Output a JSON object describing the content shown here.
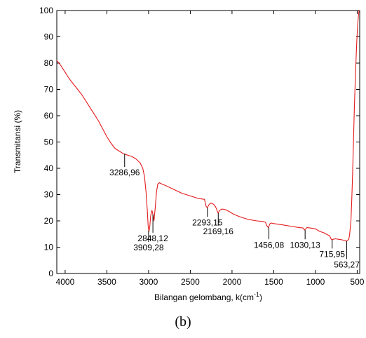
{
  "caption": "(b)",
  "chart_data": {
    "type": "line",
    "title": "",
    "xlabel_main": "Bilangan gelombang, k(cm",
    "xlabel_sup": "-1",
    "xlabel_end": ")",
    "ylabel": "Transmitansi (%)",
    "xlim": [
      4100,
      470
    ],
    "ylim": [
      0,
      100
    ],
    "x_reversed": true,
    "grid": false,
    "x_ticks": [
      4000,
      3500,
      3000,
      2500,
      2000,
      1500,
      1000,
      500
    ],
    "y_ticks": [
      0,
      10,
      20,
      30,
      40,
      50,
      60,
      70,
      80,
      90,
      100
    ],
    "line_color": "#e41a1c",
    "series": [
      {
        "x": [
          4100,
          4050,
          4000,
          3950,
          3900,
          3850,
          3800,
          3750,
          3700,
          3650,
          3600,
          3550,
          3500,
          3450,
          3400,
          3350,
          3300,
          3250,
          3200,
          3150,
          3100,
          3070,
          3050,
          3030,
          3015,
          3005,
          2995,
          2985,
          2975,
          2960,
          2948,
          2935,
          2920,
          2905,
          2890,
          2870,
          2840,
          2800,
          2700,
          2600,
          2500,
          2400,
          2330,
          2310,
          2295,
          2280,
          2265,
          2250,
          2220,
          2200,
          2185,
          2175,
          2165,
          2150,
          2120,
          2080,
          2030,
          1980,
          1900,
          1800,
          1700,
          1630,
          1600,
          1580,
          1565,
          1555,
          1545,
          1530,
          1500,
          1400,
          1300,
          1200,
          1150,
          1130,
          1115,
          1100,
          1000,
          950,
          900,
          860,
          830,
          810,
          800,
          790,
          760,
          720,
          680,
          650,
          630,
          600,
          590,
          575,
          565,
          555,
          545,
          535,
          525,
          515,
          505,
          495,
          485,
          478,
          472
        ],
        "y": [
          81,
          79,
          76.5,
          74,
          72,
          70,
          68,
          65.5,
          63,
          60.5,
          58,
          55,
          52,
          49.5,
          47.5,
          46.5,
          45.5,
          45,
          44.5,
          43.5,
          42,
          40,
          37,
          31,
          24,
          18,
          16,
          18,
          22,
          24,
          22.5,
          20,
          25,
          31,
          34,
          34.5,
          34,
          33.5,
          32,
          30.5,
          29.5,
          28.5,
          28.2,
          25.5,
          25,
          26,
          26.5,
          26.8,
          26.3,
          25.5,
          24.5,
          23.5,
          23,
          24,
          24.5,
          24.3,
          23.5,
          22.5,
          21.5,
          20.5,
          20,
          19.8,
          19.5,
          18,
          17.5,
          18.2,
          19,
          19.2,
          19,
          18.5,
          18,
          17.5,
          17.3,
          16.5,
          17,
          17.5,
          17,
          16,
          15.5,
          14.8,
          14.3,
          13,
          12.8,
          13,
          13.2,
          13,
          12.8,
          12.5,
          12.3,
          13,
          15,
          20,
          28,
          38,
          50,
          62,
          72,
          80,
          88,
          94,
          98,
          100,
          100
        ]
      }
    ],
    "annotations": [
      {
        "label": "3286,96",
        "x": 3287,
        "y_at": 45.6,
        "y_end": 40.5
      },
      {
        "label": "3909,28",
        "x": 3000,
        "y_at": 16.3,
        "y_end": 12
      },
      {
        "label": "2848,12",
        "x": 2948,
        "y_at": 22.5,
        "y_end": 15.5
      },
      {
        "label": "2293,15",
        "x": 2295,
        "y_at": 25,
        "y_end": 21.5
      },
      {
        "label": "2169,16",
        "x": 2165,
        "y_at": 23,
        "y_end": 18.2
      },
      {
        "label": "1456,08",
        "x": 1558,
        "y_at": 17.5,
        "y_end": 13
      },
      {
        "label": "1030,13",
        "x": 1124,
        "y_at": 16.5,
        "y_end": 13
      },
      {
        "label": "715,95",
        "x": 800,
        "y_at": 12.8,
        "y_end": 9.5
      },
      {
        "label": "563,27",
        "x": 625,
        "y_at": 12.3,
        "y_end": 5.5
      }
    ]
  }
}
